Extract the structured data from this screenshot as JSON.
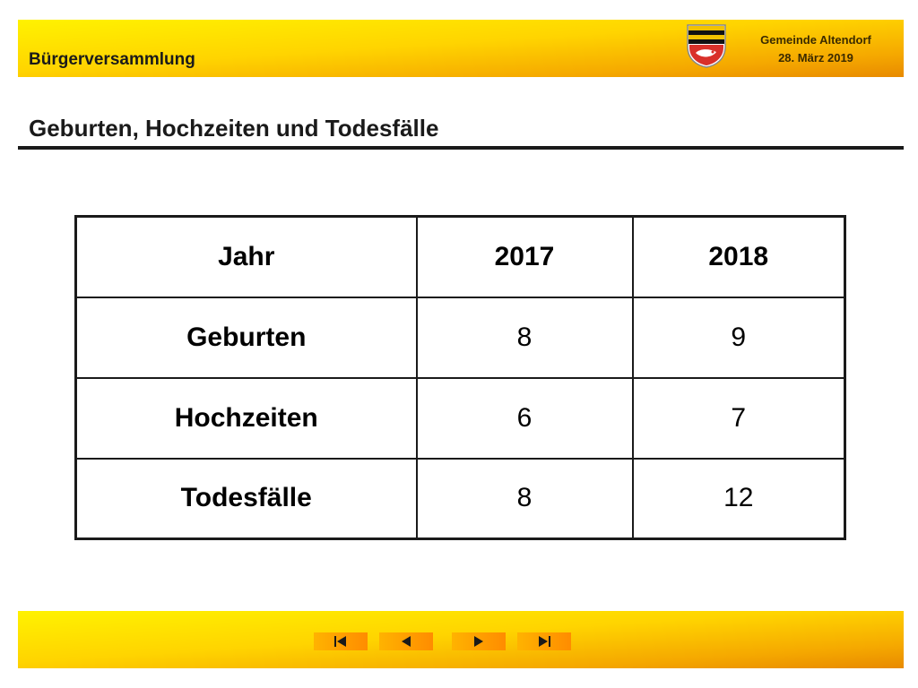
{
  "header": {
    "title": "Bürgerversammlung",
    "org_name": "Gemeinde Altendorf",
    "date": "28. März 2019",
    "crest_icon": "coat-of-arms-icon"
  },
  "slide": {
    "title": "Geburten, Hochzeiten und Todesfälle"
  },
  "table": {
    "headers": [
      "Jahr",
      "2017",
      "2018"
    ],
    "rows": [
      [
        "Geburten",
        "8",
        "9"
      ],
      [
        "Hochzeiten",
        "6",
        "7"
      ],
      [
        "Todesfälle",
        "8",
        "12"
      ]
    ]
  },
  "navigation": {
    "buttons": [
      "first-slide-icon",
      "previous-slide-icon",
      "next-slide-icon",
      "last-slide-icon"
    ]
  },
  "colors": {
    "accent_yellow": "#ffd400",
    "accent_orange": "#e88a00",
    "text": "#1a1a1a"
  }
}
